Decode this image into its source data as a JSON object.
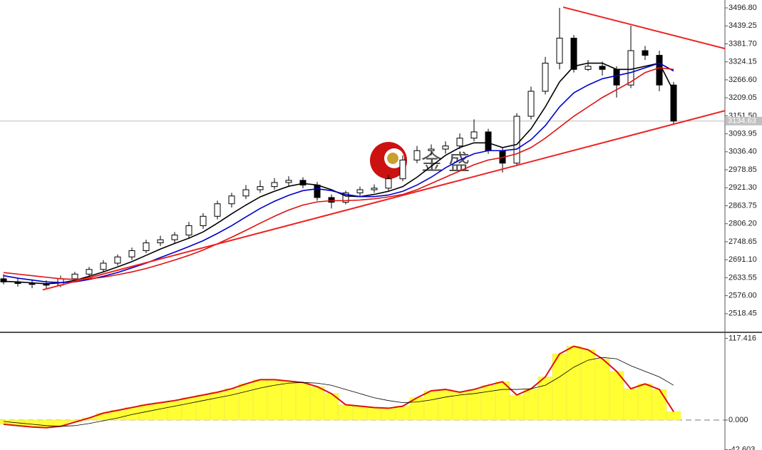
{
  "chart_data": [
    {
      "type": "candlestick",
      "watermark": "金 盛",
      "open": [
        2630,
        2620,
        2615,
        2612,
        2610,
        2630,
        2645,
        2660,
        2680,
        2700,
        2720,
        2745,
        2755,
        2770,
        2800,
        2830,
        2870,
        2895,
        2915,
        2925,
        2938,
        2945,
        2930,
        2890,
        2875,
        2905,
        2915,
        2920,
        2950,
        3010,
        3040,
        3045,
        3055,
        3080,
        3100,
        3040,
        3000,
        3150,
        3230,
        3320,
        3400,
        3300,
        3310,
        3300,
        3250,
        3360,
        3345,
        3250
      ],
      "high": [
        2645,
        2632,
        2628,
        2625,
        2640,
        2652,
        2668,
        2690,
        2708,
        2730,
        2755,
        2768,
        2780,
        2812,
        2840,
        2880,
        2905,
        2930,
        2945,
        2952,
        2958,
        2955,
        2940,
        2900,
        2912,
        2925,
        2932,
        2962,
        3025,
        3055,
        3060,
        3070,
        3095,
        3140,
        3110,
        3050,
        3160,
        3245,
        3340,
        3496.8,
        3410,
        3330,
        3325,
        3310,
        3440,
        3375,
        3360,
        3260
      ],
      "low": [
        2612,
        2605,
        2600,
        2598,
        2603,
        2622,
        2638,
        2652,
        2672,
        2690,
        2712,
        2735,
        2745,
        2760,
        2790,
        2820,
        2858,
        2885,
        2905,
        2915,
        2925,
        2920,
        2880,
        2855,
        2868,
        2895,
        2905,
        2912,
        2942,
        3000,
        3025,
        3030,
        3045,
        3070,
        3030,
        2970,
        2990,
        3140,
        3220,
        3300,
        3290,
        3295,
        3280,
        3210,
        3240,
        3330,
        3230,
        3125
      ],
      "close": [
        2620,
        2615,
        2612,
        2610,
        2630,
        2645,
        2660,
        2680,
        2700,
        2720,
        2745,
        2755,
        2770,
        2800,
        2830,
        2870,
        2895,
        2915,
        2925,
        2938,
        2945,
        2930,
        2890,
        2875,
        2905,
        2915,
        2920,
        2950,
        3010,
        3040,
        3045,
        3055,
        3080,
        3100,
        3040,
        3000,
        3150,
        3230,
        3320,
        3400,
        3300,
        3310,
        3300,
        3250,
        3360,
        3345,
        3250,
        3134.63
      ],
      "series": [
        {
          "color": "#000000",
          "values": [
            2622,
            2620,
            2617,
            2614,
            2617,
            2625,
            2638,
            2652,
            2668,
            2685,
            2705,
            2725,
            2743,
            2760,
            2780,
            2808,
            2838,
            2866,
            2892,
            2910,
            2926,
            2935,
            2930,
            2915,
            2895,
            2893,
            2900,
            2910,
            2925,
            2955,
            2990,
            3025,
            3050,
            3065,
            3065,
            3050,
            3060,
            3110,
            3180,
            3260,
            3310,
            3320,
            3320,
            3300,
            3300,
            3310,
            3320,
            3230
          ]
        },
        {
          "color": "#0000cc",
          "values": [
            2640,
            2632,
            2626,
            2620,
            2618,
            2620,
            2628,
            2638,
            2650,
            2665,
            2680,
            2698,
            2715,
            2733,
            2752,
            2775,
            2800,
            2828,
            2855,
            2878,
            2897,
            2912,
            2918,
            2912,
            2900,
            2893,
            2893,
            2898,
            2910,
            2930,
            2955,
            2985,
            3010,
            3030,
            3040,
            3040,
            3045,
            3075,
            3120,
            3180,
            3225,
            3250,
            3270,
            3280,
            3290,
            3305,
            3320,
            3295
          ]
        },
        {
          "color": "#dd1111",
          "values": [
            2650,
            2645,
            2640,
            2635,
            2630,
            2628,
            2630,
            2635,
            2643,
            2652,
            2663,
            2676,
            2690,
            2705,
            2722,
            2742,
            2763,
            2785,
            2808,
            2830,
            2850,
            2866,
            2876,
            2880,
            2880,
            2882,
            2886,
            2892,
            2900,
            2915,
            2935,
            2955,
            2975,
            2995,
            3010,
            3018,
            3030,
            3050,
            3080,
            3115,
            3150,
            3180,
            3210,
            3235,
            3260,
            3290,
            3305,
            3300
          ]
        }
      ],
      "trendlines": [
        {
          "color": "#ee2222",
          "x": [
            2.75,
            50.6
          ],
          "y": [
            2594.6,
            3167.9
          ]
        },
        {
          "color": "#ee2222",
          "x": [
            39.25,
            50.6
          ],
          "y": [
            3499,
            3366.6
          ]
        }
      ],
      "ylim": [
        2461,
        3522
      ],
      "yticks": [
        {
          "value": 3496.8,
          "label": "3496.80"
        },
        3439.25,
        {
          "value": 3381.7,
          "label": "3381.70"
        },
        3324.15,
        {
          "value": 3266.6,
          "label": "3266.60"
        },
        3209.05,
        {
          "value": 3151.5,
          "label": "3151.50"
        },
        3093.95,
        {
          "value": 3036.4,
          "label": "3036.40"
        },
        2978.85,
        {
          "value": 2921.3,
          "label": "2921.30"
        },
        2863.75,
        {
          "value": 2806.2,
          "label": "2806.20"
        },
        2748.65,
        {
          "value": 2691.1,
          "label": "2691.10"
        },
        2633.55,
        {
          "value": 2576,
          "label": "2576.00"
        },
        2518.45
      ]
    },
    {
      "type": "macd",
      "histogram_color": "#ffff33",
      "outline_color": "#dd1111",
      "values": [
        -6,
        -8,
        -10,
        -11,
        -9,
        -3,
        3,
        10,
        14,
        18,
        22,
        25,
        28,
        32,
        36,
        40,
        45,
        52,
        58,
        58,
        56,
        54,
        48,
        38,
        22,
        20,
        18,
        17,
        20,
        32,
        42,
        44,
        40,
        44,
        50,
        55,
        36,
        45,
        62,
        95,
        106,
        101,
        88,
        70,
        45,
        52,
        44,
        12
      ],
      "signal": {
        "color": "#000000",
        "values": [
          -2,
          -4,
          -6,
          -8,
          -9,
          -8,
          -5,
          -1,
          3,
          8,
          12,
          16,
          20,
          24,
          28,
          32,
          36,
          41,
          46,
          50,
          53,
          54,
          53,
          50,
          44,
          38,
          32,
          28,
          25,
          26,
          29,
          33,
          36,
          38,
          41,
          44,
          44,
          45,
          50,
          62,
          76,
          86,
          90,
          88,
          78,
          70,
          62,
          50
        ]
      },
      "ylim": [
        -43,
        125
      ],
      "yticks": [
        117.416,
        {
          "value": 0,
          "label": "0.000"
        },
        -42.603
      ]
    }
  ]
}
